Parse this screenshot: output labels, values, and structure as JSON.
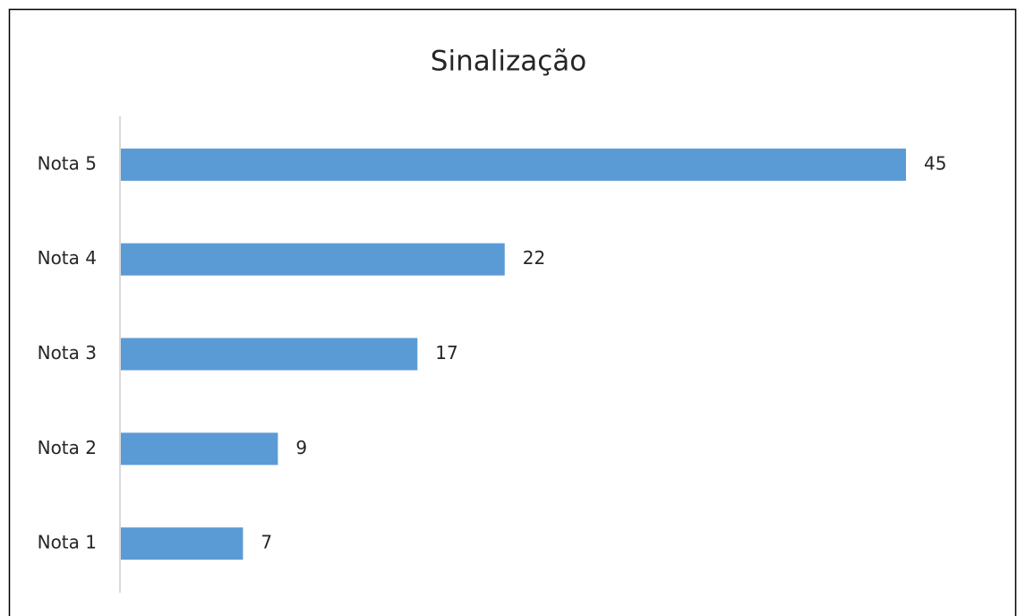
{
  "chart_data": {
    "type": "bar",
    "orientation": "horizontal",
    "title": "Sinalização",
    "categories": [
      "Nota 5",
      "Nota 4",
      "Nota 3",
      "Nota 2",
      "Nota 1"
    ],
    "values": [
      45,
      22,
      17,
      9,
      7
    ],
    "color": "#5b9bd5"
  }
}
